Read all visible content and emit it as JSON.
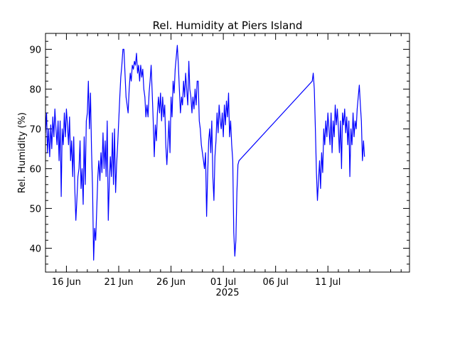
{
  "chart_data": {
    "type": "line",
    "title": "Rel. Humidity at Piers Island",
    "ylabel": "Rel. Humidity (%)",
    "xlabel": "2025",
    "ylim": [
      34,
      94
    ],
    "xlim": [
      -2.0,
      32.8
    ],
    "x_unit": "days after 16 Jun 2025",
    "y_ticks": [
      40,
      50,
      60,
      70,
      80,
      90
    ],
    "x_ticks": [
      {
        "day": 0,
        "label": "16 Jun"
      },
      {
        "day": 5,
        "label": "21 Jun"
      },
      {
        "day": 10,
        "label": "26 Jun"
      },
      {
        "day": 15,
        "label": "01 Jul"
      },
      {
        "day": 20,
        "label": "06 Jul"
      },
      {
        "day": 25,
        "label": "11 Jul"
      }
    ],
    "series": [
      {
        "color": "#0000ff",
        "points": [
          [
            -2.0,
            69
          ],
          [
            -1.9,
            74
          ],
          [
            -1.8,
            64
          ],
          [
            -1.7,
            70
          ],
          [
            -1.6,
            63
          ],
          [
            -1.5,
            71
          ],
          [
            -1.4,
            65
          ],
          [
            -1.3,
            73
          ],
          [
            -1.2,
            68
          ],
          [
            -1.1,
            75
          ],
          [
            -1.0,
            70
          ],
          [
            -0.9,
            66
          ],
          [
            -0.8,
            72
          ],
          [
            -0.7,
            62
          ],
          [
            -0.6,
            72
          ],
          [
            -0.5,
            53
          ],
          [
            -0.4,
            70
          ],
          [
            -0.3,
            66
          ],
          [
            -0.2,
            74
          ],
          [
            -0.1,
            68
          ],
          [
            0.0,
            75
          ],
          [
            0.1,
            71
          ],
          [
            0.2,
            66
          ],
          [
            0.3,
            73
          ],
          [
            0.4,
            62
          ],
          [
            0.5,
            67
          ],
          [
            0.6,
            58
          ],
          [
            0.7,
            68
          ],
          [
            0.8,
            55
          ],
          [
            0.9,
            47
          ],
          [
            1.0,
            52
          ],
          [
            1.1,
            58
          ],
          [
            1.2,
            60
          ],
          [
            1.3,
            67
          ],
          [
            1.4,
            55
          ],
          [
            1.5,
            60
          ],
          [
            1.6,
            51
          ],
          [
            1.7,
            68
          ],
          [
            1.8,
            56
          ],
          [
            1.9,
            72
          ],
          [
            2.0,
            74
          ],
          [
            2.1,
            82
          ],
          [
            2.2,
            70
          ],
          [
            2.3,
            79
          ],
          [
            2.4,
            65
          ],
          [
            2.5,
            55
          ],
          [
            2.6,
            37
          ],
          [
            2.7,
            45
          ],
          [
            2.8,
            42
          ],
          [
            2.9,
            50
          ],
          [
            3.0,
            58
          ],
          [
            3.1,
            62
          ],
          [
            3.2,
            57
          ],
          [
            3.3,
            64
          ],
          [
            3.4,
            59
          ],
          [
            3.5,
            69
          ],
          [
            3.6,
            60
          ],
          [
            3.7,
            67
          ],
          [
            3.8,
            58
          ],
          [
            3.9,
            72
          ],
          [
            4.0,
            47
          ],
          [
            4.1,
            56
          ],
          [
            4.2,
            63
          ],
          [
            4.3,
            58
          ],
          [
            4.4,
            69
          ],
          [
            4.5,
            56
          ],
          [
            4.6,
            70
          ],
          [
            4.7,
            54
          ],
          [
            4.8,
            61
          ],
          [
            4.9,
            66
          ],
          [
            5.0,
            72
          ],
          [
            5.1,
            78
          ],
          [
            5.2,
            83
          ],
          [
            5.3,
            86
          ],
          [
            5.4,
            90
          ],
          [
            5.5,
            90
          ],
          [
            5.6,
            84
          ],
          [
            5.7,
            78
          ],
          [
            5.8,
            76
          ],
          [
            5.9,
            74
          ],
          [
            6.0,
            80
          ],
          [
            6.1,
            84
          ],
          [
            6.2,
            82
          ],
          [
            6.3,
            86
          ],
          [
            6.4,
            85
          ],
          [
            6.5,
            87
          ],
          [
            6.6,
            86
          ],
          [
            6.7,
            89
          ],
          [
            6.8,
            84
          ],
          [
            6.9,
            86
          ],
          [
            7.0,
            82
          ],
          [
            7.1,
            86
          ],
          [
            7.2,
            83
          ],
          [
            7.3,
            85
          ],
          [
            7.4,
            80
          ],
          [
            7.5,
            78
          ],
          [
            7.6,
            73
          ],
          [
            7.7,
            76
          ],
          [
            7.8,
            73
          ],
          [
            7.9,
            79
          ],
          [
            8.0,
            82
          ],
          [
            8.1,
            86
          ],
          [
            8.2,
            79
          ],
          [
            8.3,
            72
          ],
          [
            8.4,
            63
          ],
          [
            8.5,
            71
          ],
          [
            8.6,
            67
          ],
          [
            8.7,
            74
          ],
          [
            8.8,
            78
          ],
          [
            8.9,
            74
          ],
          [
            9.0,
            79
          ],
          [
            9.1,
            72
          ],
          [
            9.2,
            78
          ],
          [
            9.3,
            73
          ],
          [
            9.4,
            76
          ],
          [
            9.5,
            66
          ],
          [
            9.6,
            61
          ],
          [
            9.7,
            66
          ],
          [
            9.8,
            72
          ],
          [
            9.9,
            64
          ],
          [
            10.0,
            78
          ],
          [
            10.1,
            73
          ],
          [
            10.2,
            82
          ],
          [
            10.3,
            79
          ],
          [
            10.4,
            85
          ],
          [
            10.5,
            88
          ],
          [
            10.6,
            91
          ],
          [
            10.7,
            86
          ],
          [
            10.8,
            80
          ],
          [
            10.9,
            74
          ],
          [
            11.0,
            78
          ],
          [
            11.1,
            76
          ],
          [
            11.2,
            82
          ],
          [
            11.3,
            78
          ],
          [
            11.4,
            84
          ],
          [
            11.5,
            80
          ],
          [
            11.6,
            76
          ],
          [
            11.7,
            87
          ],
          [
            11.8,
            80
          ],
          [
            11.9,
            78
          ],
          [
            12.0,
            74
          ],
          [
            12.1,
            78
          ],
          [
            12.2,
            75
          ],
          [
            12.3,
            80
          ],
          [
            12.4,
            76
          ],
          [
            12.5,
            82
          ],
          [
            12.6,
            82
          ],
          [
            12.7,
            72
          ],
          [
            12.8,
            70
          ],
          [
            12.9,
            66
          ],
          [
            13.0,
            64
          ],
          [
            13.1,
            62
          ],
          [
            13.2,
            60
          ],
          [
            13.3,
            64
          ],
          [
            13.4,
            48
          ],
          [
            13.5,
            58
          ],
          [
            13.6,
            67
          ],
          [
            13.7,
            70
          ],
          [
            13.8,
            64
          ],
          [
            13.9,
            72
          ],
          [
            14.0,
            58
          ],
          [
            14.1,
            52
          ],
          [
            14.2,
            63
          ],
          [
            14.3,
            67
          ],
          [
            14.4,
            74
          ],
          [
            14.5,
            69
          ],
          [
            14.6,
            76
          ],
          [
            14.7,
            72
          ],
          [
            14.8,
            70
          ],
          [
            14.9,
            74
          ],
          [
            15.0,
            68
          ],
          [
            15.1,
            76
          ],
          [
            15.2,
            71
          ],
          [
            15.3,
            77
          ],
          [
            15.4,
            73
          ],
          [
            15.5,
            79
          ],
          [
            15.6,
            68
          ],
          [
            15.7,
            72
          ],
          [
            15.8,
            66
          ],
          [
            15.9,
            62
          ],
          [
            16.0,
            44
          ],
          [
            16.1,
            38
          ],
          [
            16.2,
            42
          ],
          [
            16.3,
            54
          ],
          [
            16.4,
            61
          ],
          [
            16.5,
            62
          ],
          [
            23.5,
            82
          ],
          [
            23.6,
            84
          ],
          [
            23.7,
            80
          ],
          [
            23.8,
            70
          ],
          [
            23.9,
            59
          ],
          [
            24.0,
            52
          ],
          [
            24.1,
            57
          ],
          [
            24.2,
            62
          ],
          [
            24.3,
            55
          ],
          [
            24.4,
            64
          ],
          [
            24.5,
            59
          ],
          [
            24.6,
            70
          ],
          [
            24.7,
            66
          ],
          [
            24.8,
            72
          ],
          [
            24.9,
            68
          ],
          [
            25.0,
            74
          ],
          [
            25.1,
            70
          ],
          [
            25.2,
            66
          ],
          [
            25.3,
            74
          ],
          [
            25.4,
            64
          ],
          [
            25.5,
            72
          ],
          [
            25.6,
            68
          ],
          [
            25.7,
            76
          ],
          [
            25.8,
            71
          ],
          [
            25.9,
            75
          ],
          [
            26.0,
            70
          ],
          [
            26.1,
            64
          ],
          [
            26.2,
            72
          ],
          [
            26.3,
            60
          ],
          [
            26.4,
            74
          ],
          [
            26.5,
            71
          ],
          [
            26.6,
            75
          ],
          [
            26.7,
            69
          ],
          [
            26.8,
            73
          ],
          [
            26.9,
            66
          ],
          [
            27.0,
            72
          ],
          [
            27.1,
            58
          ],
          [
            27.2,
            70
          ],
          [
            27.3,
            66
          ],
          [
            27.4,
            74
          ],
          [
            27.5,
            68
          ],
          [
            27.6,
            72
          ],
          [
            27.7,
            70
          ],
          [
            27.8,
            75
          ],
          [
            27.9,
            78
          ],
          [
            28.0,
            81
          ],
          [
            28.1,
            76
          ],
          [
            28.2,
            72
          ],
          [
            28.3,
            62
          ],
          [
            28.4,
            67
          ],
          [
            28.5,
            63
          ]
        ]
      }
    ],
    "grid": false,
    "legend": "none"
  }
}
